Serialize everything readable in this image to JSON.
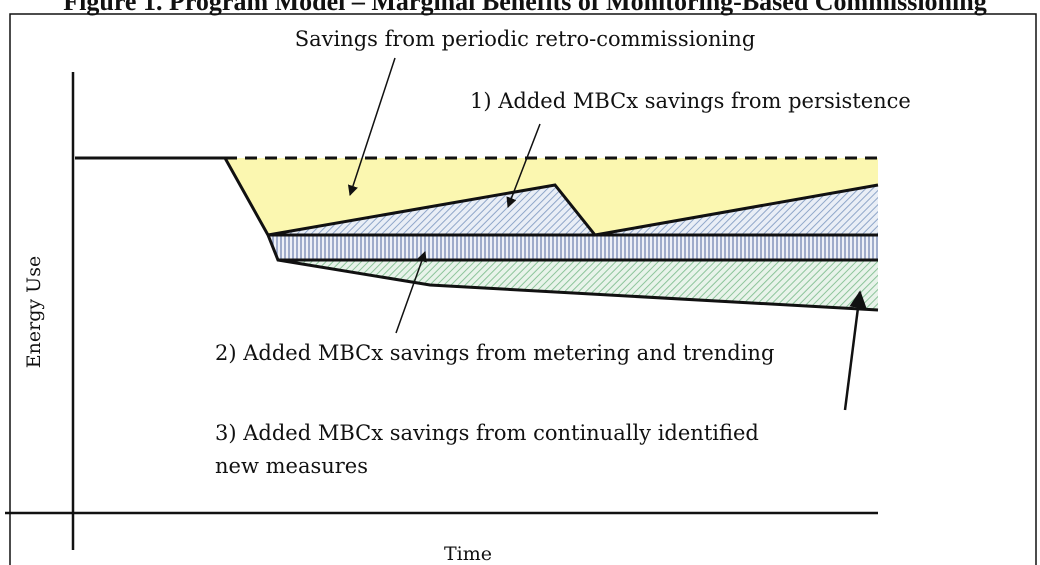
{
  "title": "Figure 1. Program Model – Marginal Benefits of Monitoring-Based Commissioning",
  "annotations": {
    "retro": "Savings from periodic retro-commissioning",
    "persistence": "1) Added MBCx savings from persistence",
    "metering": "2) Added MBCx savings from metering and trending",
    "measures": [
      "3) Added MBCx savings from continually identified",
      "new measures"
    ]
  },
  "y_axis_label": "Energy Use",
  "x_axis_label": "Time"
}
